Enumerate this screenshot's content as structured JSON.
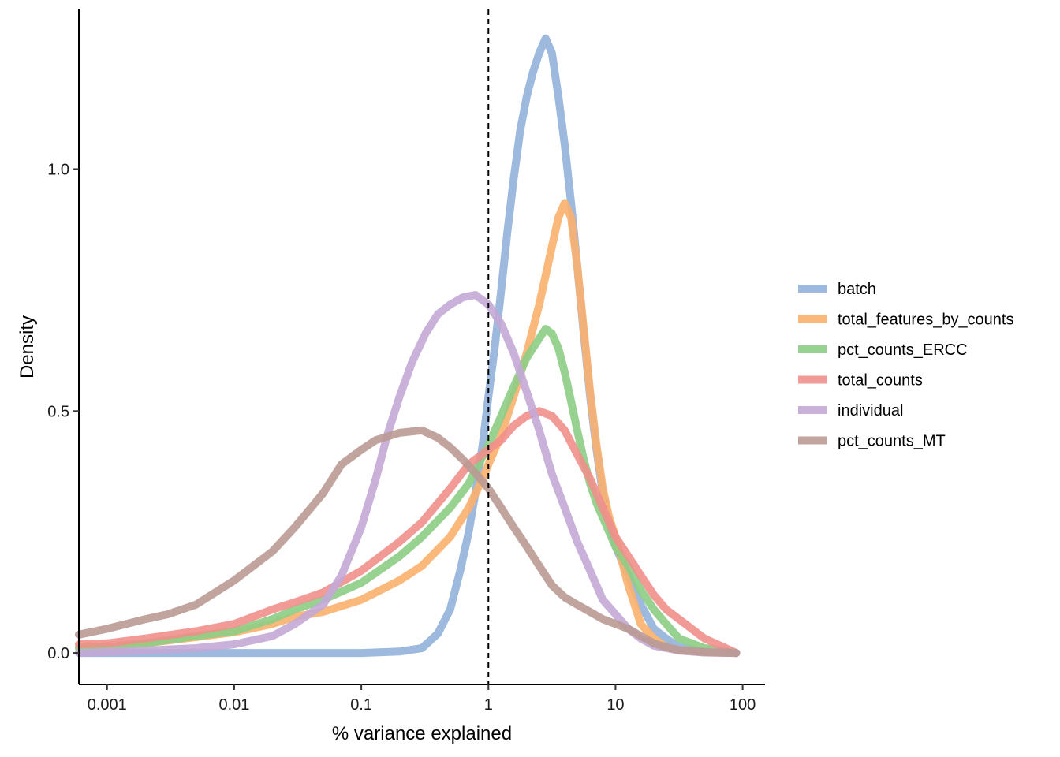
{
  "chart_data": {
    "type": "line",
    "xlabel": "% variance explained",
    "ylabel": "Density",
    "x_scale": "log10",
    "xlim": [
      0.0006,
      150
    ],
    "ylim": [
      -0.065,
      1.33
    ],
    "x_ticks": [
      {
        "value": 0.001,
        "label": "0.001"
      },
      {
        "value": 0.01,
        "label": "0.01"
      },
      {
        "value": 0.1,
        "label": "0.1"
      },
      {
        "value": 1,
        "label": "1"
      },
      {
        "value": 10,
        "label": "10"
      },
      {
        "value": 100,
        "label": "100"
      }
    ],
    "y_ticks": [
      {
        "value": 0.0,
        "label": "0.0"
      },
      {
        "value": 0.5,
        "label": "0.5"
      },
      {
        "value": 1.0,
        "label": "1.0"
      }
    ],
    "vline": {
      "x": 1,
      "style": "dashed",
      "color": "#000000"
    },
    "grid": false,
    "legend_position": "right",
    "series": [
      {
        "name": "batch",
        "color": "#92B3DA",
        "points": [
          [
            0.0006,
            0.0
          ],
          [
            0.01,
            0.0
          ],
          [
            0.1,
            0.0
          ],
          [
            0.2,
            0.003
          ],
          [
            0.3,
            0.01
          ],
          [
            0.4,
            0.04
          ],
          [
            0.5,
            0.09
          ],
          [
            0.6,
            0.17
          ],
          [
            0.7,
            0.25
          ],
          [
            0.8,
            0.34
          ],
          [
            0.9,
            0.43
          ],
          [
            1.0,
            0.53
          ],
          [
            1.12,
            0.63
          ],
          [
            1.26,
            0.75
          ],
          [
            1.41,
            0.87
          ],
          [
            1.58,
            0.98
          ],
          [
            1.78,
            1.08
          ],
          [
            2.0,
            1.15
          ],
          [
            2.24,
            1.2
          ],
          [
            2.51,
            1.24
          ],
          [
            2.82,
            1.27
          ],
          [
            3.16,
            1.24
          ],
          [
            3.55,
            1.15
          ],
          [
            3.98,
            1.05
          ],
          [
            4.47,
            0.93
          ],
          [
            5.0,
            0.8
          ],
          [
            5.62,
            0.66
          ],
          [
            6.31,
            0.53
          ],
          [
            7.08,
            0.42
          ],
          [
            7.94,
            0.33
          ],
          [
            8.91,
            0.27
          ],
          [
            10,
            0.22
          ],
          [
            12.6,
            0.16
          ],
          [
            15.8,
            0.1
          ],
          [
            20,
            0.05
          ],
          [
            25,
            0.03
          ],
          [
            31.6,
            0.012
          ],
          [
            50,
            0.003
          ],
          [
            89,
            0.0
          ]
        ]
      },
      {
        "name": "total_features_by_counts",
        "color": "#FBB06D",
        "points": [
          [
            0.0006,
            0.012
          ],
          [
            0.001,
            0.014
          ],
          [
            0.002,
            0.02
          ],
          [
            0.005,
            0.033
          ],
          [
            0.01,
            0.043
          ],
          [
            0.02,
            0.06
          ],
          [
            0.03,
            0.075
          ],
          [
            0.05,
            0.085
          ],
          [
            0.1,
            0.11
          ],
          [
            0.2,
            0.15
          ],
          [
            0.3,
            0.18
          ],
          [
            0.5,
            0.24
          ],
          [
            0.7,
            0.3
          ],
          [
            0.9,
            0.36
          ],
          [
            1.0,
            0.39
          ],
          [
            1.26,
            0.45
          ],
          [
            1.58,
            0.53
          ],
          [
            2.0,
            0.62
          ],
          [
            2.51,
            0.72
          ],
          [
            3.16,
            0.84
          ],
          [
            3.55,
            0.9
          ],
          [
            3.98,
            0.93
          ],
          [
            4.47,
            0.9
          ],
          [
            5.0,
            0.8
          ],
          [
            5.62,
            0.67
          ],
          [
            6.31,
            0.54
          ],
          [
            7.08,
            0.43
          ],
          [
            7.94,
            0.34
          ],
          [
            8.91,
            0.28
          ],
          [
            10,
            0.24
          ],
          [
            12.6,
            0.14
          ],
          [
            15.8,
            0.06
          ],
          [
            20,
            0.03
          ],
          [
            25,
            0.012
          ],
          [
            31.6,
            0.005
          ],
          [
            50,
            0.001
          ],
          [
            89,
            0.0
          ]
        ]
      },
      {
        "name": "pct_counts_ERCC",
        "color": "#8DCD84",
        "points": [
          [
            0.0006,
            0.01
          ],
          [
            0.001,
            0.012
          ],
          [
            0.002,
            0.02
          ],
          [
            0.005,
            0.035
          ],
          [
            0.01,
            0.045
          ],
          [
            0.02,
            0.07
          ],
          [
            0.03,
            0.09
          ],
          [
            0.05,
            0.11
          ],
          [
            0.1,
            0.145
          ],
          [
            0.2,
            0.2
          ],
          [
            0.3,
            0.24
          ],
          [
            0.5,
            0.3
          ],
          [
            0.7,
            0.35
          ],
          [
            1.0,
            0.43
          ],
          [
            1.26,
            0.49
          ],
          [
            1.58,
            0.55
          ],
          [
            2.0,
            0.61
          ],
          [
            2.51,
            0.65
          ],
          [
            2.82,
            0.67
          ],
          [
            3.16,
            0.66
          ],
          [
            3.55,
            0.63
          ],
          [
            3.98,
            0.58
          ],
          [
            4.47,
            0.52
          ],
          [
            5.0,
            0.46
          ],
          [
            5.62,
            0.4
          ],
          [
            6.31,
            0.35
          ],
          [
            7.08,
            0.31
          ],
          [
            7.94,
            0.28
          ],
          [
            10,
            0.22
          ],
          [
            12.6,
            0.18
          ],
          [
            15.8,
            0.13
          ],
          [
            20,
            0.09
          ],
          [
            25,
            0.06
          ],
          [
            31.6,
            0.03
          ],
          [
            50,
            0.01
          ],
          [
            89,
            0.0
          ]
        ]
      },
      {
        "name": "total_counts",
        "color": "#F08F8B",
        "points": [
          [
            0.0006,
            0.018
          ],
          [
            0.001,
            0.02
          ],
          [
            0.002,
            0.03
          ],
          [
            0.005,
            0.045
          ],
          [
            0.01,
            0.06
          ],
          [
            0.02,
            0.09
          ],
          [
            0.03,
            0.105
          ],
          [
            0.05,
            0.125
          ],
          [
            0.1,
            0.17
          ],
          [
            0.2,
            0.23
          ],
          [
            0.3,
            0.27
          ],
          [
            0.5,
            0.34
          ],
          [
            0.7,
            0.39
          ],
          [
            1.0,
            0.42
          ],
          [
            1.26,
            0.44
          ],
          [
            1.58,
            0.47
          ],
          [
            2.0,
            0.49
          ],
          [
            2.51,
            0.5
          ],
          [
            3.16,
            0.49
          ],
          [
            3.98,
            0.46
          ],
          [
            5.0,
            0.41
          ],
          [
            6.31,
            0.36
          ],
          [
            7.94,
            0.3
          ],
          [
            10,
            0.24
          ],
          [
            12.6,
            0.2
          ],
          [
            15.8,
            0.16
          ],
          [
            20,
            0.12
          ],
          [
            25,
            0.09
          ],
          [
            31.6,
            0.07
          ],
          [
            50,
            0.03
          ],
          [
            89,
            0.0
          ]
        ]
      },
      {
        "name": "individual",
        "color": "#C3A8D6",
        "points": [
          [
            0.0006,
            0.0
          ],
          [
            0.001,
            0.002
          ],
          [
            0.002,
            0.005
          ],
          [
            0.005,
            0.01
          ],
          [
            0.01,
            0.018
          ],
          [
            0.02,
            0.035
          ],
          [
            0.03,
            0.06
          ],
          [
            0.05,
            0.1
          ],
          [
            0.07,
            0.16
          ],
          [
            0.1,
            0.26
          ],
          [
            0.13,
            0.36
          ],
          [
            0.16,
            0.45
          ],
          [
            0.2,
            0.53
          ],
          [
            0.25,
            0.6
          ],
          [
            0.32,
            0.66
          ],
          [
            0.4,
            0.7
          ],
          [
            0.5,
            0.72
          ],
          [
            0.63,
            0.735
          ],
          [
            0.79,
            0.74
          ],
          [
            1.0,
            0.72
          ],
          [
            1.26,
            0.68
          ],
          [
            1.58,
            0.62
          ],
          [
            2.0,
            0.54
          ],
          [
            2.51,
            0.46
          ],
          [
            3.16,
            0.37
          ],
          [
            3.98,
            0.3
          ],
          [
            5.0,
            0.23
          ],
          [
            6.31,
            0.17
          ],
          [
            7.94,
            0.11
          ],
          [
            10,
            0.08
          ],
          [
            12.6,
            0.05
          ],
          [
            15.8,
            0.03
          ],
          [
            20,
            0.015
          ],
          [
            31.6,
            0.005
          ],
          [
            50,
            0.001
          ],
          [
            89,
            0.0
          ]
        ]
      },
      {
        "name": "pct_counts_MT",
        "color": "#B99A92",
        "points": [
          [
            0.0006,
            0.038
          ],
          [
            0.001,
            0.05
          ],
          [
            0.002,
            0.07
          ],
          [
            0.003,
            0.08
          ],
          [
            0.005,
            0.1
          ],
          [
            0.01,
            0.15
          ],
          [
            0.02,
            0.21
          ],
          [
            0.03,
            0.26
          ],
          [
            0.05,
            0.33
          ],
          [
            0.07,
            0.39
          ],
          [
            0.1,
            0.42
          ],
          [
            0.13,
            0.44
          ],
          [
            0.2,
            0.455
          ],
          [
            0.3,
            0.46
          ],
          [
            0.4,
            0.445
          ],
          [
            0.5,
            0.425
          ],
          [
            0.63,
            0.4
          ],
          [
            0.8,
            0.37
          ],
          [
            1.0,
            0.34
          ],
          [
            1.26,
            0.3
          ],
          [
            1.58,
            0.26
          ],
          [
            2.0,
            0.22
          ],
          [
            2.51,
            0.18
          ],
          [
            3.16,
            0.14
          ],
          [
            3.98,
            0.115
          ],
          [
            5.0,
            0.1
          ],
          [
            6.31,
            0.085
          ],
          [
            7.94,
            0.07
          ],
          [
            10,
            0.06
          ],
          [
            12.6,
            0.05
          ],
          [
            15.8,
            0.035
          ],
          [
            20,
            0.02
          ],
          [
            25,
            0.012
          ],
          [
            31.6,
            0.006
          ],
          [
            50,
            0.002
          ],
          [
            89,
            0.0
          ]
        ]
      }
    ]
  }
}
